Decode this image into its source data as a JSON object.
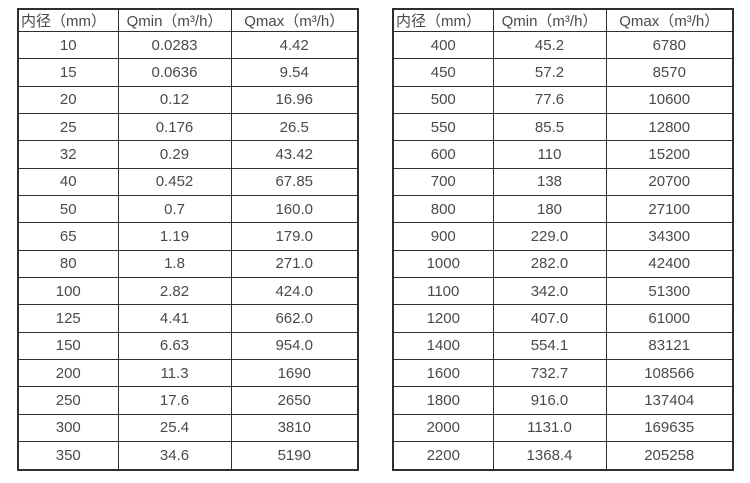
{
  "colors": {
    "background": "#ffffff",
    "border": "#2e2e2e",
    "text": "#4a4a4a"
  },
  "headers": {
    "diameter": "内径（mm）",
    "qmin": "Qmin（m³/h）",
    "qmax": "Qmax（m³/h）"
  },
  "tables": [
    {
      "name": "flow-rate-table-small-diameters",
      "rows": [
        [
          "10",
          "0.0283",
          "4.42"
        ],
        [
          "15",
          "0.0636",
          "9.54"
        ],
        [
          "20",
          "0.12",
          "16.96"
        ],
        [
          "25",
          "0.176",
          "26.5"
        ],
        [
          "32",
          "0.29",
          "43.42"
        ],
        [
          "40",
          "0.452",
          "67.85"
        ],
        [
          "50",
          "0.7",
          "160.0"
        ],
        [
          "65",
          "1.19",
          "179.0"
        ],
        [
          "80",
          "1.8",
          "271.0"
        ],
        [
          "100",
          "2.82",
          "424.0"
        ],
        [
          "125",
          "4.41",
          "662.0"
        ],
        [
          "150",
          "6.63",
          "954.0"
        ],
        [
          "200",
          "11.3",
          "1690"
        ],
        [
          "250",
          "17.6",
          "2650"
        ],
        [
          "300",
          "25.4",
          "3810"
        ],
        [
          "350",
          "34.6",
          "5190"
        ]
      ]
    },
    {
      "name": "flow-rate-table-large-diameters",
      "rows": [
        [
          "400",
          "45.2",
          "6780"
        ],
        [
          "450",
          "57.2",
          "8570"
        ],
        [
          "500",
          "77.6",
          "10600"
        ],
        [
          "550",
          "85.5",
          "12800"
        ],
        [
          "600",
          "110",
          "15200"
        ],
        [
          "700",
          "138",
          "20700"
        ],
        [
          "800",
          "180",
          "27100"
        ],
        [
          "900",
          "229.0",
          "34300"
        ],
        [
          "1000",
          "282.0",
          "42400"
        ],
        [
          "1100",
          "342.0",
          "51300"
        ],
        [
          "1200",
          "407.0",
          "61000"
        ],
        [
          "1400",
          "554.1",
          "83121"
        ],
        [
          "1600",
          "732.7",
          "108566"
        ],
        [
          "1800",
          "916.0",
          "137404"
        ],
        [
          "2000",
          "1131.0",
          "169635"
        ],
        [
          "2200",
          "1368.4",
          "205258"
        ]
      ]
    }
  ]
}
